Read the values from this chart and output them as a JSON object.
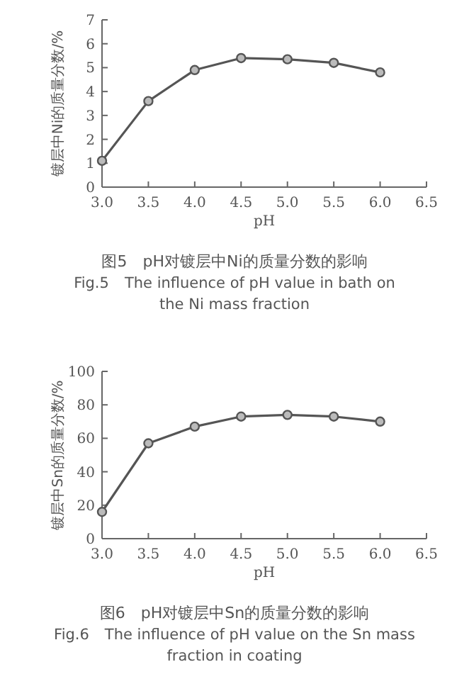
{
  "chart_data": [
    {
      "type": "line",
      "xlabel": "pH",
      "ylabel": "镀层中Ni的质量分数/%",
      "x": [
        3.0,
        3.5,
        4.0,
        4.5,
        5.0,
        5.5,
        6.0
      ],
      "series": [
        {
          "color": "#555555",
          "values": [
            1.1,
            3.6,
            4.9,
            5.4,
            5.35,
            5.2,
            4.8
          ]
        }
      ],
      "xlim": [
        3.0,
        6.5
      ],
      "xticks": [
        {
          "value": 3,
          "label": "3.0"
        },
        3.5,
        {
          "value": 4,
          "label": "4.0"
        },
        4.5,
        {
          "value": 5,
          "label": "5.0"
        },
        5.5,
        {
          "value": 6,
          "label": "6.0"
        },
        6.5
      ],
      "ylim": [
        0,
        7
      ],
      "yticks": [
        0,
        1,
        2,
        3,
        4,
        5,
        6,
        7
      ],
      "grid": false,
      "marker": "circle",
      "line_style": "solid",
      "annotations": [
        "图5　pH对镀层中Ni的质量分数的影响",
        "Fig.5　The influence of pH value in bath on",
        "the Ni mass fraction"
      ]
    },
    {
      "type": "line",
      "xlabel": "pH",
      "ylabel": "镀层中Sn的质量分数/%",
      "x": [
        3.0,
        3.5,
        4.0,
        4.5,
        5.0,
        5.5,
        6.0
      ],
      "series": [
        {
          "color": "#555555",
          "values": [
            16,
            57,
            67,
            73,
            74,
            73,
            70
          ]
        }
      ],
      "xlim": [
        3.0,
        6.5
      ],
      "xticks": [
        {
          "value": 3,
          "label": "3.0"
        },
        3.5,
        {
          "value": 4,
          "label": "4.0"
        },
        4.5,
        {
          "value": 5,
          "label": "5.0"
        },
        5.5,
        {
          "value": 6,
          "label": "6.0"
        },
        6.5
      ],
      "ylim": [
        0,
        100
      ],
      "yticks": [
        0,
        20,
        40,
        60,
        80,
        100
      ],
      "grid": false,
      "marker": "circle",
      "line_style": "solid",
      "annotations": [
        "图6　pH对镀层中Sn的质量分数的影响",
        "Fig.6　The influence of pH value on the Sn mass",
        "fraction in coating"
      ]
    }
  ]
}
